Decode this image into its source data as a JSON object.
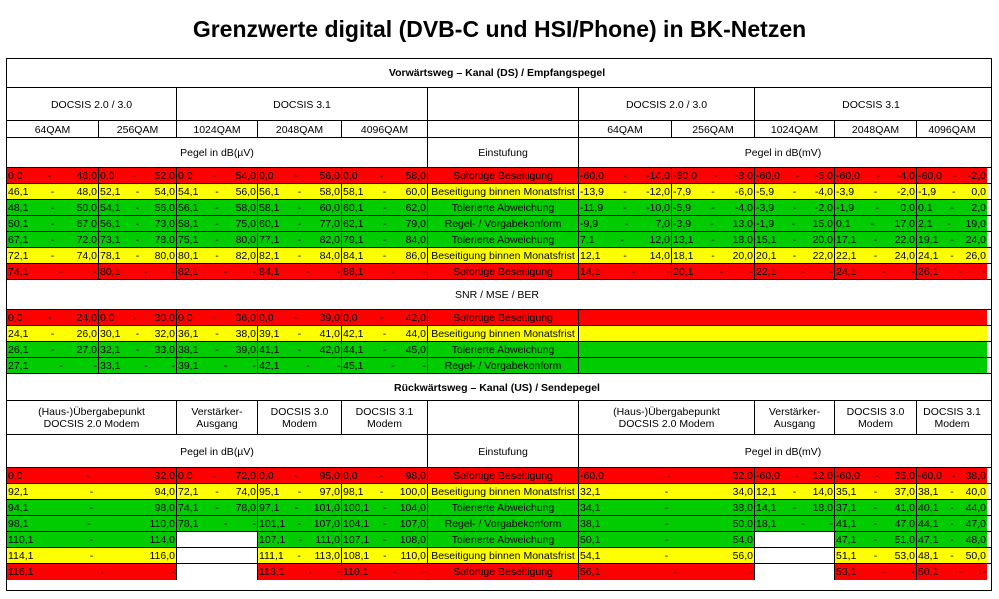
{
  "title": "Grenzwerte digital (DVB-C und HSI/Phone) in BK-Netzen",
  "colors": {
    "R": "#ff0000",
    "Y": "#ffff00",
    "G": "#00cc00"
  },
  "ds": {
    "heading": "Vorwärtsweg – Kanal (DS) / Empfangspegel",
    "group_left_1": "DOCSIS 2.0 / 3.0",
    "group_left_2": "DOCSIS 3.1",
    "group_right_1": "DOCSIS 2.0 / 3.0",
    "group_right_2": "DOCSIS 3.1",
    "mod": [
      "64QAM",
      "256QAM",
      "1024QAM",
      "2048QAM",
      "4096QAM"
    ],
    "unit_left": "Pegel in dB(µV)",
    "einstufung": "Einstufung",
    "unit_right": "Pegel in dB(mV)",
    "rows": [
      {
        "c": "R",
        "label": "Sofortige Beseitigung",
        "L": [
          [
            "0,0",
            "46,0"
          ],
          [
            "0,0",
            "52,0"
          ],
          [
            "0,0",
            "54,0"
          ],
          [
            "0,0",
            "56,0"
          ],
          [
            "0,0",
            "58,0"
          ]
        ],
        "Rt": [
          [
            "-60,0",
            "-14,0"
          ],
          [
            "-60,0",
            "-8,0"
          ],
          [
            "-60,0",
            "-6,0"
          ],
          [
            "-60,0",
            "-4,0"
          ],
          [
            "-60,0",
            "-2,0"
          ]
        ]
      },
      {
        "c": "Y",
        "label": "Beseitigung binnen Monatsfrist",
        "L": [
          [
            "46,1",
            "48,0"
          ],
          [
            "52,1",
            "54,0"
          ],
          [
            "54,1",
            "56,0"
          ],
          [
            "56,1",
            "58,0"
          ],
          [
            "58,1",
            "60,0"
          ]
        ],
        "Rt": [
          [
            "-13,9",
            "-12,0"
          ],
          [
            "-7,9",
            "-6,0"
          ],
          [
            "-5,9",
            "-4,0"
          ],
          [
            "-3,9",
            "-2,0"
          ],
          [
            "-1,9",
            "0,0"
          ]
        ]
      },
      {
        "c": "G",
        "label": "Tolerierte Abweichung",
        "L": [
          [
            "48,1",
            "50,0"
          ],
          [
            "54,1",
            "56,0"
          ],
          [
            "56,1",
            "58,0"
          ],
          [
            "58,1",
            "60,0"
          ],
          [
            "60,1",
            "62,0"
          ]
        ],
        "Rt": [
          [
            "-11,9",
            "-10,0"
          ],
          [
            "-5,9",
            "-4,0"
          ],
          [
            "-3,9",
            "-2,0"
          ],
          [
            "-1,9",
            "0,0"
          ],
          [
            "0,1",
            "2,0"
          ]
        ]
      },
      {
        "c": "G",
        "label": "Regel- / Vorgabekonform",
        "L": [
          [
            "50,1",
            "67,0"
          ],
          [
            "56,1",
            "73,0"
          ],
          [
            "58,1",
            "75,0"
          ],
          [
            "60,1",
            "77,0"
          ],
          [
            "62,1",
            "79,0"
          ]
        ],
        "Rt": [
          [
            "-9,9",
            "7,0"
          ],
          [
            "-3,9",
            "13,0"
          ],
          [
            "-1,9",
            "15,0"
          ],
          [
            "0,1",
            "17,0"
          ],
          [
            "2,1",
            "19,0"
          ]
        ]
      },
      {
        "c": "G",
        "label": "Tolerierte Abweichung",
        "L": [
          [
            "67,1",
            "72,0"
          ],
          [
            "73,1",
            "78,0"
          ],
          [
            "75,1",
            "80,0"
          ],
          [
            "77,1",
            "82,0"
          ],
          [
            "79,1",
            "84,0"
          ]
        ],
        "Rt": [
          [
            "7,1",
            "12,0"
          ],
          [
            "13,1",
            "18,0"
          ],
          [
            "15,1",
            "20,0"
          ],
          [
            "17,1",
            "22,0"
          ],
          [
            "19,1",
            "24,0"
          ]
        ]
      },
      {
        "c": "Y",
        "label": "Beseitigung binnen Monatsfrist",
        "L": [
          [
            "72,1",
            "74,0"
          ],
          [
            "78,1",
            "80,0"
          ],
          [
            "80,1",
            "82,0"
          ],
          [
            "82,1",
            "84,0"
          ],
          [
            "84,1",
            "86,0"
          ]
        ],
        "Rt": [
          [
            "12,1",
            "14,0"
          ],
          [
            "18,1",
            "20,0"
          ],
          [
            "20,1",
            "22,0"
          ],
          [
            "22,1",
            "24,0"
          ],
          [
            "24,1",
            "26,0"
          ]
        ]
      },
      {
        "c": "R",
        "label": "Sofortige Beseitigung",
        "L": [
          [
            "74,1",
            "-"
          ],
          [
            "80,1",
            "-"
          ],
          [
            "82,1",
            "-"
          ],
          [
            "84,1",
            "-"
          ],
          [
            "86,1",
            "-"
          ]
        ],
        "Rt": [
          [
            "14,1",
            "-"
          ],
          [
            "20,1",
            "-"
          ],
          [
            "22,1",
            "-"
          ],
          [
            "24,1",
            "-"
          ],
          [
            "26,1",
            "-"
          ]
        ]
      }
    ]
  },
  "snr": {
    "heading": "SNR / MSE / BER",
    "rows": [
      {
        "c": "R",
        "label": "Sofortige Beseitigung",
        "L": [
          [
            "0,0",
            "24,0"
          ],
          [
            "0,0",
            "30,0"
          ],
          [
            "0,0",
            "36,0"
          ],
          [
            "0,0",
            "39,0"
          ],
          [
            "0,0",
            "42,0"
          ]
        ]
      },
      {
        "c": "Y",
        "label": "Beseitigung binnen Monatsfrist",
        "L": [
          [
            "24,1",
            "26,0"
          ],
          [
            "30,1",
            "32,0"
          ],
          [
            "36,1",
            "38,0"
          ],
          [
            "39,1",
            "41,0"
          ],
          [
            "42,1",
            "44,0"
          ]
        ]
      },
      {
        "c": "G",
        "label": "Tolerierte Abweichung",
        "L": [
          [
            "26,1",
            "27,0"
          ],
          [
            "32,1",
            "33,0"
          ],
          [
            "38,1",
            "39,0"
          ],
          [
            "41,1",
            "42,0"
          ],
          [
            "44,1",
            "45,0"
          ]
        ]
      },
      {
        "c": "G",
        "label": "Regel- / Vorgabekonform",
        "L": [
          [
            "27,1",
            "-"
          ],
          [
            "33,1",
            "-"
          ],
          [
            "39,1",
            "-"
          ],
          [
            "42,1",
            "-"
          ],
          [
            "45,1",
            "-"
          ]
        ]
      }
    ]
  },
  "us": {
    "heading": "Rückwärtsweg – Kanal (US) / Sendepegel",
    "cols_left": [
      [
        "(Haus-)Übergabepunkt",
        "DOCSIS 2.0 Modem"
      ],
      [
        "Verstärker-",
        "Ausgang"
      ],
      [
        "DOCSIS 3.0",
        "Modem"
      ],
      [
        "DOCSIS 3.1",
        "Modem"
      ]
    ],
    "cols_right": [
      [
        "(Haus-)Übergabepunkt",
        "DOCSIS 2.0 Modem"
      ],
      [
        "Verstärker-",
        "Ausgang"
      ],
      [
        "DOCSIS 3.0",
        "Modem"
      ],
      [
        "DOCSIS 3.1",
        "Modem"
      ]
    ],
    "unit_left": "Pegel in dB(µV)",
    "einstufung": "Einstufung",
    "unit_right": "Pegel in dB(mV)",
    "rows": [
      {
        "c": "R",
        "label": "Sofortige Beseitigung",
        "L": [
          [
            "0,0",
            "92,0"
          ],
          [
            "0,0",
            "72,0"
          ],
          [
            "0,0",
            "95,0"
          ],
          [
            "0,0",
            "98,0"
          ]
        ],
        "Rt": [
          [
            "-60,0",
            "32,0"
          ],
          [
            "-60,0",
            "12,0"
          ],
          [
            "-60,0",
            "35,0"
          ],
          [
            "-60,0",
            "38,0"
          ]
        ]
      },
      {
        "c": "Y",
        "label": "Beseitigung binnen Monatsfrist",
        "L": [
          [
            "92,1",
            "94,0"
          ],
          [
            "72,1",
            "74,0"
          ],
          [
            "95,1",
            "97,0"
          ],
          [
            "98,1",
            "100,0"
          ]
        ],
        "Rt": [
          [
            "32,1",
            "34,0"
          ],
          [
            "12,1",
            "14,0"
          ],
          [
            "35,1",
            "37,0"
          ],
          [
            "38,1",
            "40,0"
          ]
        ]
      },
      {
        "c": "G",
        "label": "Tolerierte Abweichung",
        "L": [
          [
            "94,1",
            "98,0"
          ],
          [
            "74,1",
            "78,0"
          ],
          [
            "97,1",
            "101,0"
          ],
          [
            "100,1",
            "104,0"
          ]
        ],
        "Rt": [
          [
            "34,1",
            "38,0"
          ],
          [
            "14,1",
            "18,0"
          ],
          [
            "37,1",
            "41,0"
          ],
          [
            "40,1",
            "44,0"
          ]
        ]
      },
      {
        "c": "G",
        "label": "Regel- / Vorgabekonform",
        "L": [
          [
            "98,1",
            "110,0"
          ],
          [
            "78,1",
            "-"
          ],
          [
            "101,1",
            "107,0"
          ],
          [
            "104,1",
            "107,0"
          ]
        ],
        "Rt": [
          [
            "38,1",
            "50,0"
          ],
          [
            "18,1",
            "-"
          ],
          [
            "41,1",
            "47,0"
          ],
          [
            "44,1",
            "47,0"
          ]
        ]
      },
      {
        "c": "G",
        "label": "Tolerierte Abweichung",
        "L": [
          [
            "110,1",
            "114,0"
          ],
          null,
          [
            "107,1",
            "111,0"
          ],
          [
            "107,1",
            "108,0"
          ]
        ],
        "Rt": [
          [
            "50,1",
            "54,0"
          ],
          null,
          [
            "47,1",
            "51,0"
          ],
          [
            "47,1",
            "48,0"
          ]
        ]
      },
      {
        "c": "Y",
        "label": "Beseitigung binnen Monatsfrist",
        "L": [
          [
            "114,1",
            "116,0"
          ],
          null,
          [
            "111,1",
            "113,0"
          ],
          [
            "108,1",
            "110,0"
          ]
        ],
        "Rt": [
          [
            "54,1",
            "56,0"
          ],
          null,
          [
            "51,1",
            "53,0"
          ],
          [
            "48,1",
            "50,0"
          ]
        ]
      },
      {
        "c": "R",
        "label": "Sofortige Beseitigung",
        "L": [
          [
            "116,1",
            "-"
          ],
          null,
          [
            "113,1",
            "-"
          ],
          [
            "110,1",
            "-"
          ]
        ],
        "Rt": [
          [
            "56,1",
            "-"
          ],
          null,
          [
            "53,1",
            "-"
          ],
          [
            "50,1",
            "-"
          ]
        ]
      }
    ]
  }
}
